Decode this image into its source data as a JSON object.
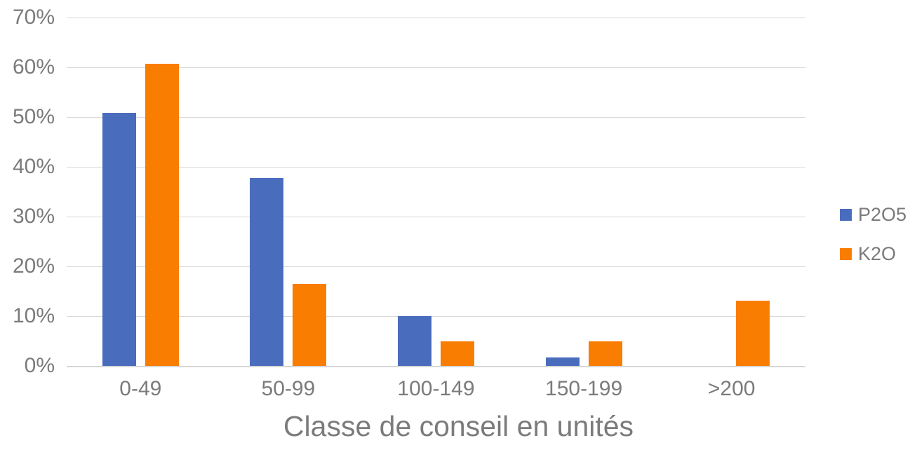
{
  "chart_data": {
    "type": "bar",
    "title": "",
    "xlabel": "Classe de conseil en unités",
    "ylabel": "",
    "categories": [
      "0-49",
      "50-99",
      "100-149",
      "150-199",
      ">200"
    ],
    "series": [
      {
        "name": "P2O5",
        "color": "#4A6CBD",
        "values": [
          50.8,
          37.8,
          10.0,
          1.7,
          0
        ]
      },
      {
        "name": "K2O",
        "color": "#F97D01",
        "values": [
          60.7,
          16.5,
          5.0,
          5.0,
          13.1
        ]
      }
    ],
    "ylim": [
      0,
      70
    ],
    "ytick_step": 10,
    "ytick_labels": [
      "0%",
      "10%",
      "20%",
      "30%",
      "40%",
      "50%",
      "60%",
      "70%"
    ],
    "grid": true,
    "legend_position": "right"
  },
  "style": {
    "text_color": "#7B7B7B",
    "gridline_color": "#D9D9D9",
    "axis_line_color": "#D6D6D6",
    "background": "#FFFFFF"
  }
}
